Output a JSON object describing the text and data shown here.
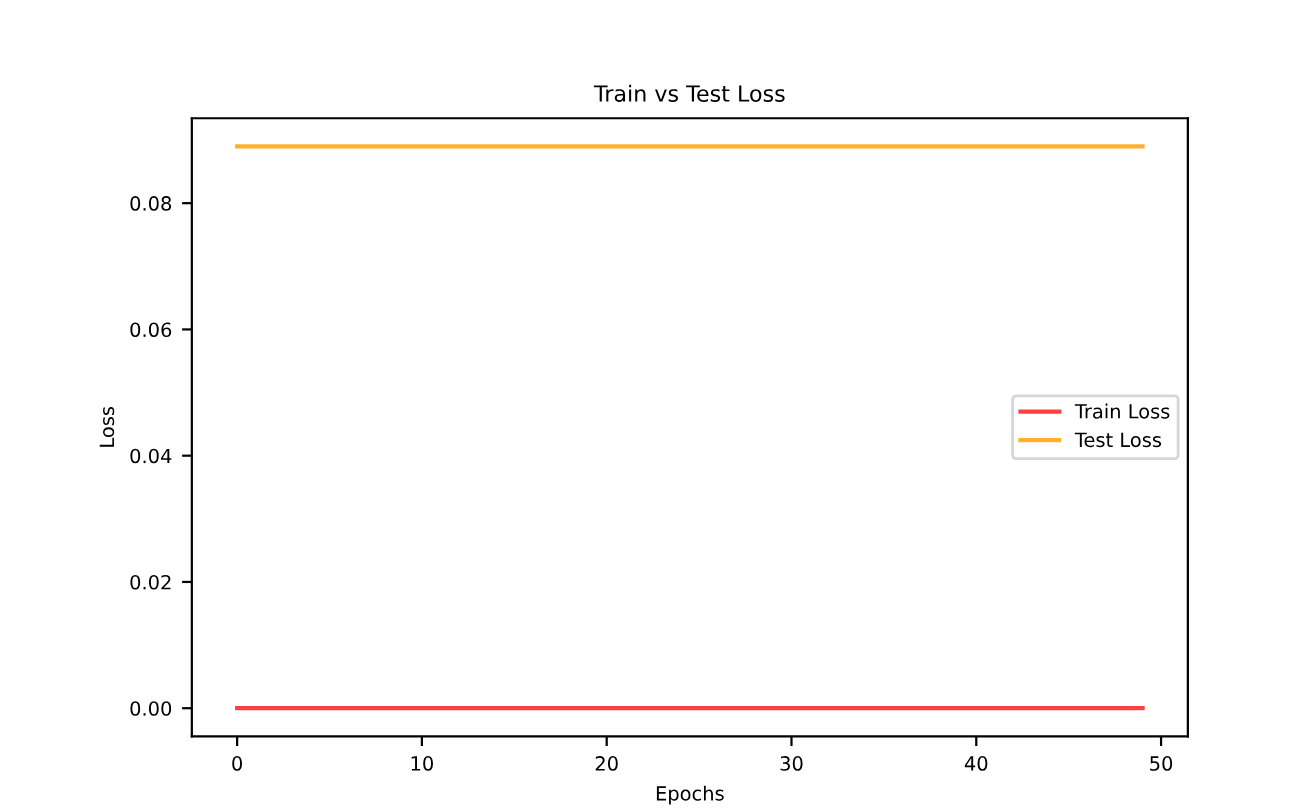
{
  "chart_data": {
    "type": "line",
    "title": "Train vs Test Loss",
    "xlabel": "Epochs",
    "ylabel": "Loss",
    "x": [
      0,
      49
    ],
    "series": [
      {
        "name": "Train Loss",
        "color": "#ff4040",
        "values": [
          0,
          0
        ]
      },
      {
        "name": "Test Loss",
        "color": "#ffb030",
        "values": [
          0.089,
          0.089
        ]
      }
    ],
    "xlim": [
      -2.45,
      51.45
    ],
    "xticks": [
      0,
      10,
      20,
      30,
      40,
      50
    ],
    "ylim": [
      -0.00445,
      0.09345
    ],
    "yticks": [
      {
        "value": 0,
        "label": "0.00"
      },
      {
        "value": 0.02,
        "label": "0.02"
      },
      {
        "value": 0.04,
        "label": "0.04"
      },
      {
        "value": 0.06,
        "label": "0.06"
      },
      {
        "value": 0.08,
        "label": "0.08"
      }
    ],
    "grid": false,
    "legend": "center right",
    "marker": "none",
    "line_style": "solid"
  }
}
